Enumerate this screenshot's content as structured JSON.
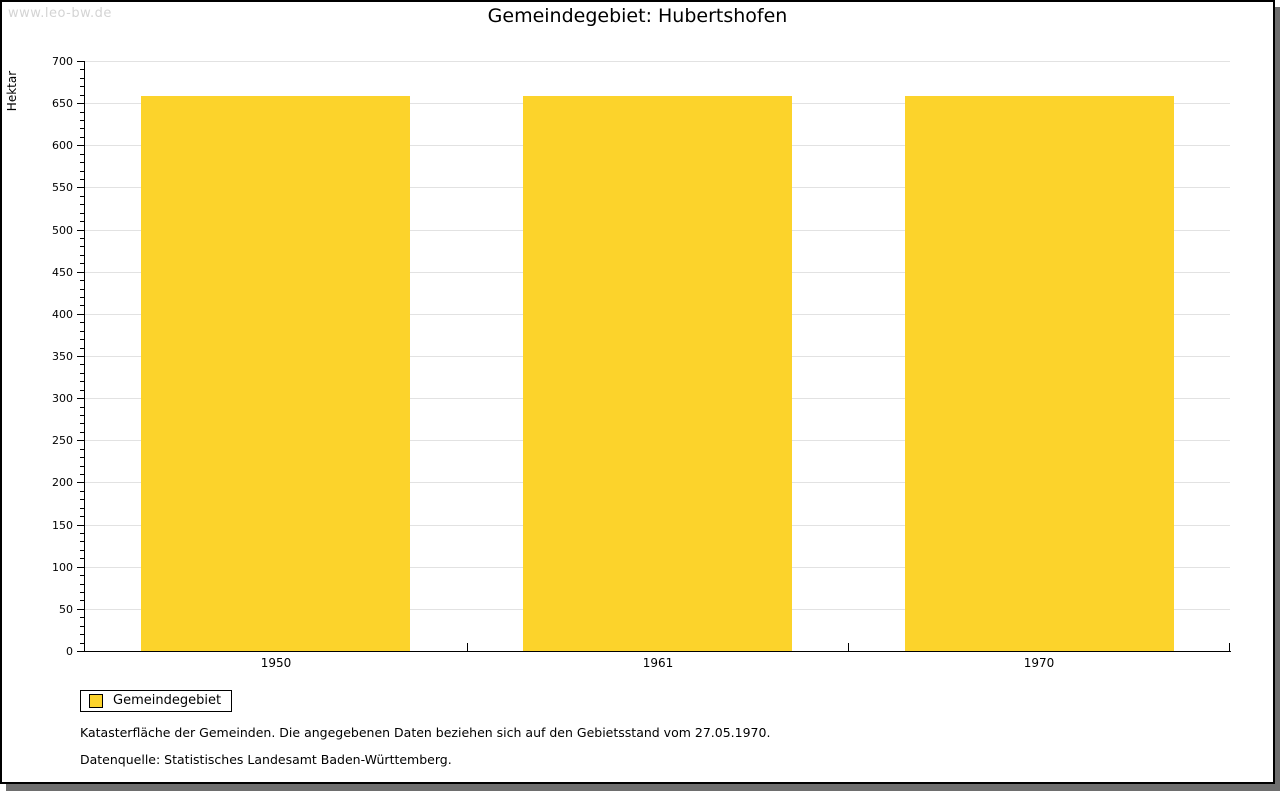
{
  "watermark": "www.leo-bw.de",
  "title": "Gemeindegebiet: Hubertshofen",
  "chart_data": {
    "type": "bar",
    "categories": [
      "1950",
      "1961",
      "1970"
    ],
    "series": [
      {
        "name": "Gemeindegebiet",
        "values": [
          658,
          658,
          658
        ]
      }
    ],
    "title": "Gemeindegebiet: Hubertshofen",
    "xlabel": "",
    "ylabel": "Hektar",
    "ylim": [
      0,
      700
    ],
    "ytick_step": 50,
    "yminor_step": 10,
    "grid": "horizontal-major",
    "legend_position": "bottom-left"
  },
  "legend": {
    "label": "Gemeindegebiet",
    "swatch_color": "#FCD32B"
  },
  "footnotes": [
    "Katasterfläche der Gemeinden. Die angegebenen Daten beziehen sich auf den Gebietsstand vom 27.05.1970.",
    "Datenquelle: Statistisches Landesamt Baden-Württemberg."
  ],
  "colors": {
    "bar": "#FCD32B",
    "grid": "#E2E2E2",
    "axis": "#000000",
    "frame_shadow": "#6E6E6E",
    "watermark_text": "#D4D4D4"
  }
}
